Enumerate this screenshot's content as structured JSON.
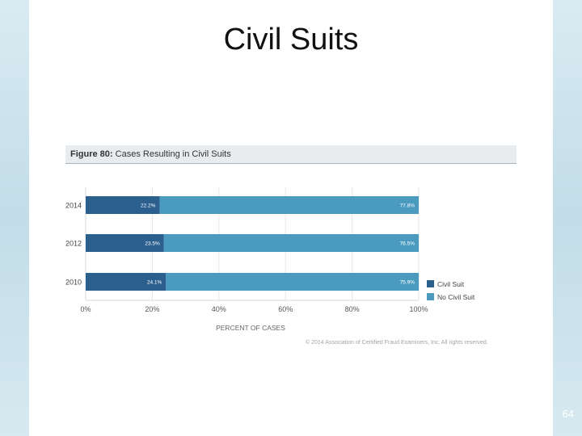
{
  "slide": {
    "title": "Civil Suits",
    "page_number": "64",
    "copyright": "© 2014 Association of Certified Fraud Examiners, Inc. All rights reserved."
  },
  "chart_data": {
    "type": "bar",
    "orientation": "horizontal",
    "stacked": true,
    "figure_label": "Figure 80:",
    "title": "Cases Resulting in Civil Suits",
    "categories": [
      "2014",
      "2012",
      "2010"
    ],
    "series": [
      {
        "name": "Civil Suit",
        "color": "#2b5f8e",
        "values": [
          22.2,
          23.5,
          24.1
        ],
        "labels": [
          "22.2%",
          "23.5%",
          "24.1%"
        ]
      },
      {
        "name": "No Civil Suit",
        "color": "#4a9bbf",
        "values": [
          77.8,
          76.5,
          75.9
        ],
        "labels": [
          "77.8%",
          "76.5%",
          "75.9%"
        ]
      }
    ],
    "xlim": [
      0,
      100
    ],
    "x_ticks": [
      "0%",
      "20%",
      "40%",
      "60%",
      "80%",
      "100%"
    ],
    "xlabel": "PERCENT OF CASES",
    "ylabel": "",
    "grid": true,
    "legend_position": "bottom-right"
  }
}
